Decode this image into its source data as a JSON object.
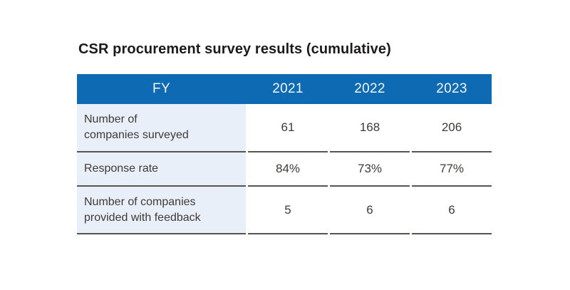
{
  "title": "CSR procurement survey results (cumulative)",
  "table": {
    "header": [
      "FY",
      "2021",
      "2022",
      "2023"
    ],
    "rows": [
      {
        "label": "Number of\ncompanies surveyed",
        "values": [
          "61",
          "168",
          "206"
        ]
      },
      {
        "label": "Response rate",
        "values": [
          "84%",
          "73%",
          "77%"
        ]
      },
      {
        "label": "Number of companies\nprovided with feedback",
        "values": [
          "5",
          "6",
          "6"
        ]
      }
    ]
  },
  "chart_data": {
    "type": "table",
    "title": "CSR procurement survey results (cumulative)",
    "columns": [
      "FY",
      "2021",
      "2022",
      "2023"
    ],
    "rows": [
      [
        "Number of companies surveyed",
        61,
        168,
        206
      ],
      [
        "Response rate",
        "84%",
        "73%",
        "77%"
      ],
      [
        "Number of companies provided with feedback",
        5,
        6,
        6
      ]
    ]
  },
  "colors": {
    "header_bg": "#0d6ab3",
    "header_text": "#f4f4f2",
    "label_bg": "#e9eff8",
    "rule": "#59544f",
    "body_text": "#403a36",
    "title_text": "#1d1a19"
  }
}
